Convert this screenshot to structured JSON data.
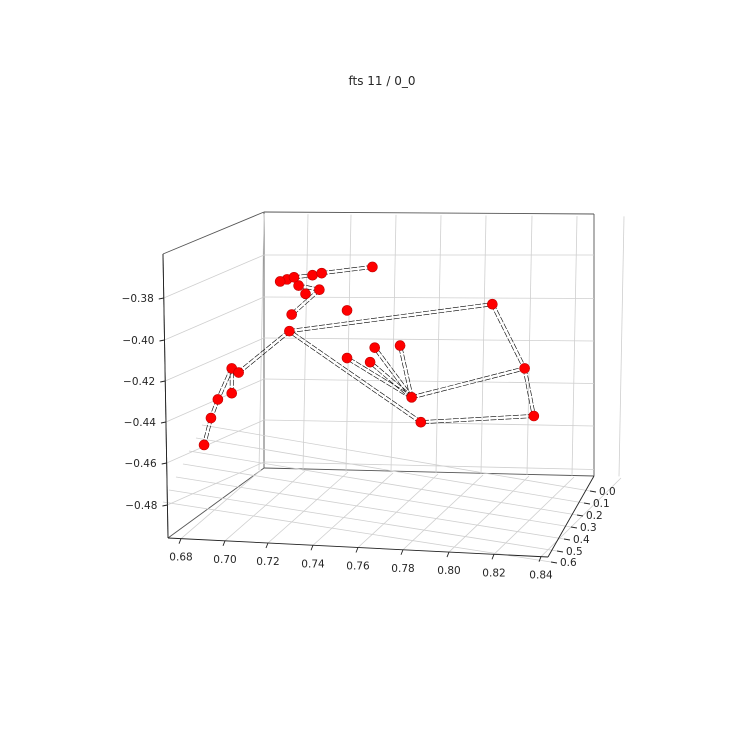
{
  "chart_data": {
    "type": "scatter",
    "title": "fts 11 / 0_0",
    "xlabel": "",
    "ylabel": "",
    "zlabel": "",
    "x_ticks": [
      "0.68",
      "0.70",
      "0.72",
      "0.74",
      "0.76",
      "0.78",
      "0.80",
      "0.82",
      "0.84"
    ],
    "y_ticks": [
      "0.0",
      "0.1",
      "0.2",
      "0.3",
      "0.4",
      "0.5",
      "0.6"
    ],
    "z_ticks": [
      "−0.38",
      "−0.40",
      "−0.42",
      "−0.44",
      "−0.46",
      "−0.48"
    ],
    "grid": true,
    "marker_color": "#ff0000",
    "edge_color": "#000000",
    "points": [
      {
        "id": 0,
        "x": 0.752,
        "z": -0.386
      },
      {
        "id": 1,
        "x": 0.734,
        "z": -0.378
      },
      {
        "id": 2,
        "x": 0.731,
        "z": -0.374
      },
      {
        "id": 3,
        "x": 0.726,
        "z": -0.371
      },
      {
        "id": 4,
        "x": 0.723,
        "z": -0.372
      },
      {
        "id": 5,
        "x": 0.729,
        "z": -0.37
      },
      {
        "id": 6,
        "x": 0.737,
        "z": -0.369
      },
      {
        "id": 7,
        "x": 0.741,
        "z": -0.368
      },
      {
        "id": 8,
        "x": 0.763,
        "z": -0.365
      },
      {
        "id": 9,
        "x": 0.74,
        "z": -0.376
      },
      {
        "id": 10,
        "x": 0.728,
        "z": -0.388
      },
      {
        "id": 11,
        "x": 0.815,
        "z": -0.383
      },
      {
        "id": 12,
        "x": 0.727,
        "z": -0.396
      },
      {
        "id": 13,
        "x": 0.829,
        "z": -0.414
      },
      {
        "id": 14,
        "x": 0.702,
        "z": -0.414
      },
      {
        "id": 15,
        "x": 0.702,
        "z": -0.426
      },
      {
        "id": 16,
        "x": 0.696,
        "z": -0.429
      },
      {
        "id": 17,
        "x": 0.693,
        "z": -0.438
      },
      {
        "id": 18,
        "x": 0.69,
        "z": -0.451
      },
      {
        "id": 19,
        "x": 0.705,
        "z": -0.416
      },
      {
        "id": 20,
        "x": 0.78,
        "z": -0.428
      },
      {
        "id": 21,
        "x": 0.762,
        "z": -0.411
      },
      {
        "id": 22,
        "x": 0.752,
        "z": -0.409
      },
      {
        "id": 23,
        "x": 0.764,
        "z": -0.404
      },
      {
        "id": 24,
        "x": 0.775,
        "z": -0.403
      },
      {
        "id": 25,
        "x": 0.833,
        "z": -0.437
      },
      {
        "id": 26,
        "x": 0.784,
        "z": -0.44
      }
    ],
    "edges": [
      [
        4,
        5
      ],
      [
        5,
        6
      ],
      [
        6,
        7
      ],
      [
        7,
        8
      ],
      [
        3,
        5
      ],
      [
        2,
        9
      ],
      [
        9,
        10
      ],
      [
        12,
        11
      ],
      [
        11,
        13
      ],
      [
        13,
        25
      ],
      [
        25,
        26
      ],
      [
        26,
        12
      ],
      [
        12,
        19
      ],
      [
        19,
        14
      ],
      [
        14,
        16
      ],
      [
        16,
        17
      ],
      [
        17,
        18
      ],
      [
        15,
        14
      ],
      [
        20,
        21
      ],
      [
        20,
        22
      ],
      [
        20,
        23
      ],
      [
        20,
        24
      ],
      [
        20,
        13
      ]
    ]
  }
}
